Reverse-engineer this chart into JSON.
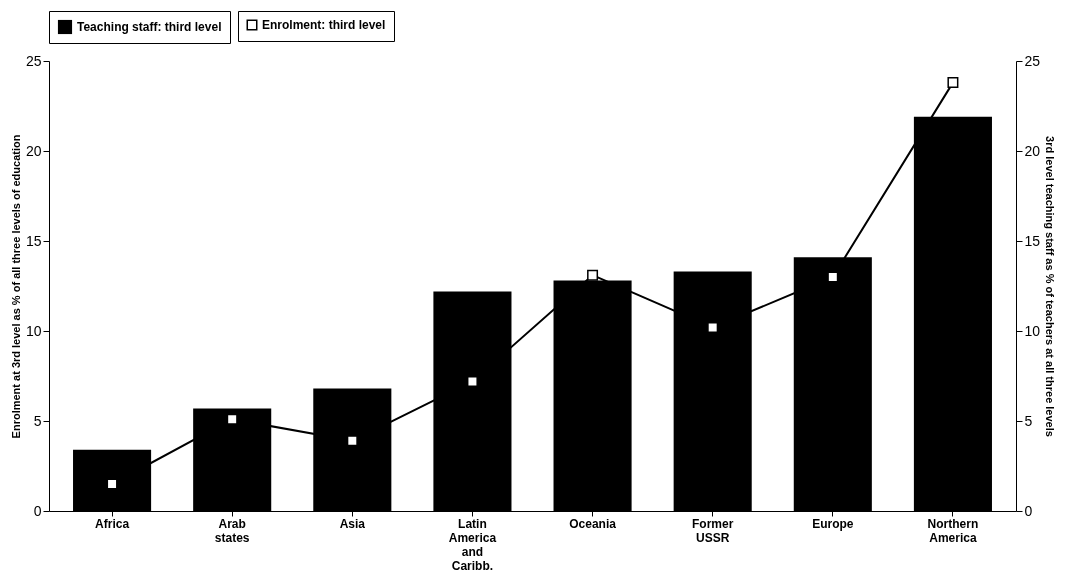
{
  "chart_data": {
    "type": "bar",
    "categories": [
      "Africa",
      "Arab states",
      "Asia",
      "Latin America and Caribb.",
      "Oceania",
      "Former USSR",
      "Europe",
      "Northern America"
    ],
    "series": [
      {
        "name": "Teaching staff: third level",
        "type": "bar",
        "axis": "y2",
        "color": "#000000",
        "values": [
          3.4,
          5.7,
          6.8,
          12.2,
          12.8,
          13.3,
          14.1,
          21.9
        ]
      },
      {
        "name": "Enrolment: third level",
        "type": "line",
        "color": "#000000",
        "marker": "square",
        "values": [
          1.5,
          5.1,
          3.9,
          7.2,
          13.1,
          10.2,
          13.0,
          23.8
        ]
      }
    ],
    "ylabel": "Enrolment at 3rd level as % of all three levels of education",
    "y2label": "3rd level teaching staff as % of teachers at all three levels",
    "ylim": [
      0,
      25
    ],
    "yticks": [
      0,
      5,
      10,
      15,
      20,
      25
    ],
    "y2lim": [
      0,
      25
    ],
    "y2ticks": [
      0,
      5,
      10,
      15,
      20,
      25
    ],
    "legend": "top",
    "grid": false
  }
}
